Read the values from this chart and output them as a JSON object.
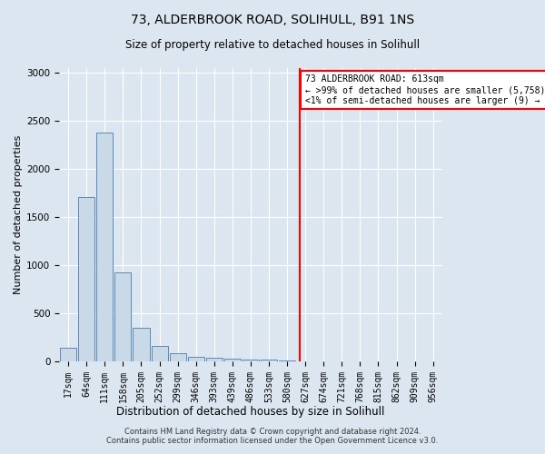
{
  "title_line1": "73, ALDERBROOK ROAD, SOLIHULL, B91 1NS",
  "title_line2": "Size of property relative to detached houses in Solihull",
  "xlabel": "Distribution of detached houses by size in Solihull",
  "ylabel": "Number of detached properties",
  "footer_line1": "Contains HM Land Registry data © Crown copyright and database right 2024.",
  "footer_line2": "Contains public sector information licensed under the Open Government Licence v3.0.",
  "bin_labels": [
    "17sqm",
    "64sqm",
    "111sqm",
    "158sqm",
    "205sqm",
    "252sqm",
    "299sqm",
    "346sqm",
    "393sqm",
    "439sqm",
    "486sqm",
    "533sqm",
    "580sqm",
    "627sqm",
    "674sqm",
    "721sqm",
    "768sqm",
    "815sqm",
    "862sqm",
    "909sqm",
    "956sqm"
  ],
  "bar_values": [
    140,
    1710,
    2380,
    920,
    350,
    155,
    80,
    50,
    38,
    30,
    20,
    15,
    12,
    0,
    0,
    0,
    0,
    0,
    0,
    0,
    0
  ],
  "bar_color": "#c9d9e8",
  "bar_edge_color": "#5a8ab5",
  "vline_color": "red",
  "annotation_text": "73 ALDERBROOK ROAD: 613sqm\n← >99% of detached houses are smaller (5,758)\n<1% of semi-detached houses are larger (9) →",
  "ylim": [
    0,
    3050
  ],
  "yticks": [
    0,
    500,
    1000,
    1500,
    2000,
    2500,
    3000
  ],
  "background_color": "#dce6f0",
  "plot_background_color": "#dce6f0",
  "title1_fontsize": 10,
  "title2_fontsize": 8.5,
  "ylabel_fontsize": 8,
  "xlabel_fontsize": 8.5,
  "tick_fontsize": 7,
  "footer_fontsize": 6,
  "annotation_fontsize": 7
}
